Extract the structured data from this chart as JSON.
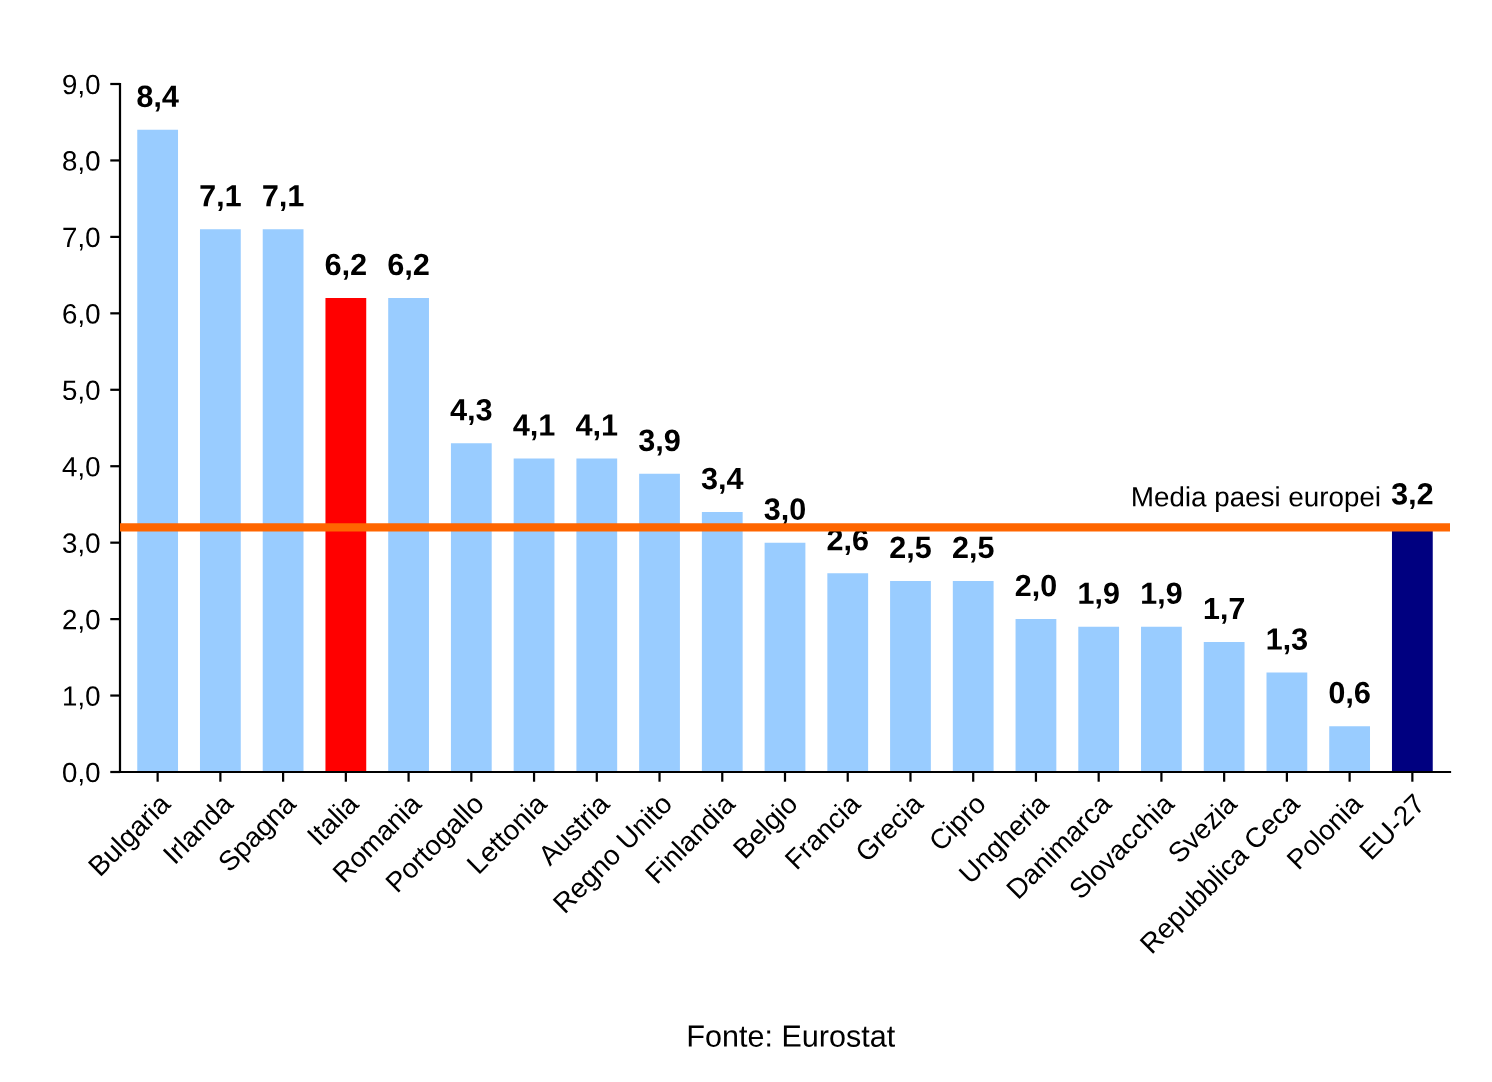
{
  "chart_data": {
    "type": "bar",
    "categories": [
      "Bulgaria",
      "Irlanda",
      "Spagna",
      "Italia",
      "Romania",
      "Portogallo",
      "Lettonia",
      "Austria",
      "Regno Unito",
      "Finlandia",
      "Belgio",
      "Francia",
      "Grecia",
      "Cipro",
      "Ungheria",
      "Danimarca",
      "Slovacchia",
      "Svezia",
      "Repubblica Ceca",
      "Polonia",
      "EU-27"
    ],
    "values": [
      8.4,
      7.1,
      7.1,
      6.2,
      6.2,
      4.3,
      4.1,
      4.1,
      3.9,
      3.4,
      3.0,
      2.6,
      2.5,
      2.5,
      2.0,
      1.9,
      1.9,
      1.7,
      1.3,
      0.6,
      3.2
    ],
    "colors": [
      "#99ccff",
      "#99ccff",
      "#99ccff",
      "#ff0000",
      "#99ccff",
      "#99ccff",
      "#99ccff",
      "#99ccff",
      "#99ccff",
      "#99ccff",
      "#99ccff",
      "#99ccff",
      "#99ccff",
      "#99ccff",
      "#99ccff",
      "#99ccff",
      "#99ccff",
      "#99ccff",
      "#99ccff",
      "#99ccff",
      "#000080"
    ],
    "value_labels": [
      "8,4",
      "7,1",
      "7,1",
      "6,2",
      "6,2",
      "4,3",
      "4,1",
      "4,1",
      "3,9",
      "3,4",
      "3,0",
      "2,6",
      "2,5",
      "2,5",
      "2,0",
      "1,9",
      "1,9",
      "1,7",
      "1,3",
      "0,6",
      "3,2"
    ],
    "ylim": [
      0,
      9
    ],
    "yticks": [
      {
        "value": 0,
        "label": "0,0"
      },
      {
        "value": 1,
        "label": "1,0"
      },
      {
        "value": 2,
        "label": "2,0"
      },
      {
        "value": 3,
        "label": "3,0"
      },
      {
        "value": 4,
        "label": "4,0"
      },
      {
        "value": 5,
        "label": "5,0"
      },
      {
        "value": 6,
        "label": "6,0"
      },
      {
        "value": 7,
        "label": "7,0"
      },
      {
        "value": 8,
        "label": "8,0"
      },
      {
        "value": 9,
        "label": "9,0"
      }
    ],
    "ref_lines": [
      {
        "axis": "y",
        "value": 3.2,
        "label": "Media paesi europei",
        "color": "#ff6600"
      }
    ],
    "annotations": [
      "Fonte: Eurostat"
    ],
    "grid": false,
    "legend": false
  }
}
